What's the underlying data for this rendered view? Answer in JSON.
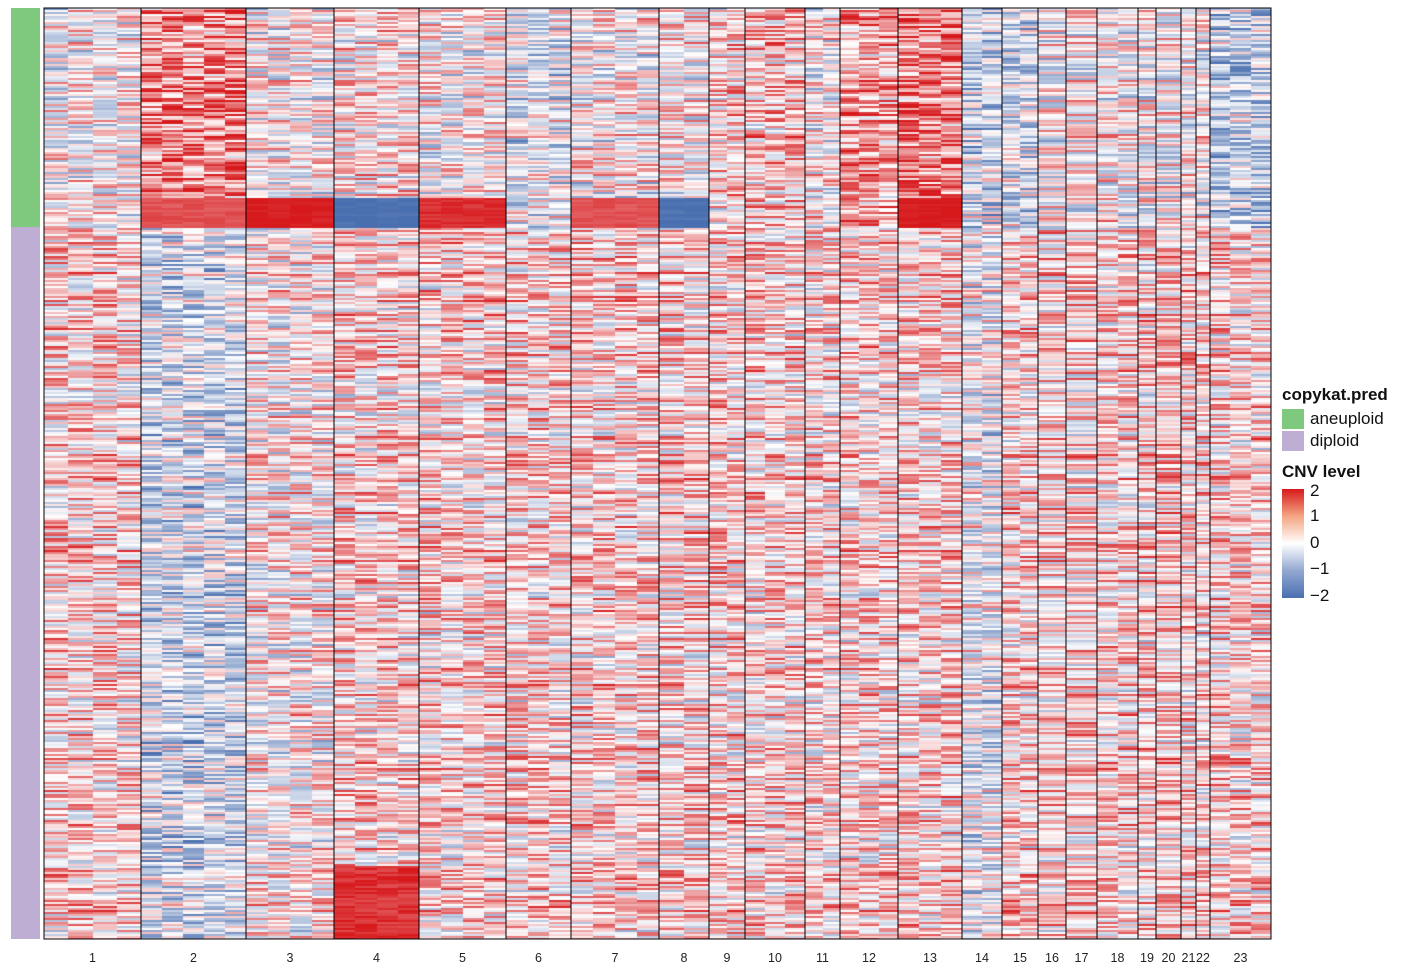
{
  "chart_data": {
    "type": "heatmap",
    "title": "",
    "xlabel": "",
    "ylabel": "",
    "x_categories": [
      "1",
      "2",
      "3",
      "4",
      "5",
      "6",
      "7",
      "8",
      "9",
      "10",
      "11",
      "12",
      "13",
      "14",
      "15",
      "16",
      "17",
      "18",
      "19",
      "20",
      "21",
      "22",
      "23"
    ],
    "row_annotation": {
      "title": "copykat.pred",
      "groups": [
        {
          "name": "aneuploid",
          "color": "#7fc97f",
          "fraction_of_rows": 0.235
        },
        {
          "name": "diploid",
          "color": "#beaed4",
          "fraction_of_rows": 0.765
        }
      ]
    },
    "color_scale": {
      "title": "CNV level",
      "ticks": [
        "2",
        "1",
        "0",
        "−1",
        "−2"
      ],
      "range": [
        -2,
        2
      ],
      "low_color": "#4a6fb0",
      "mid_color": "#ffffff",
      "high_color": "#d7191c"
    },
    "notable_blocks": [
      {
        "chromosome": "3",
        "group": "aneuploid",
        "level": 2
      },
      {
        "chromosome": "4",
        "group": "aneuploid",
        "level": -2
      },
      {
        "chromosome": "5",
        "group": "aneuploid",
        "level": 1.8
      },
      {
        "chromosome": "7",
        "group": "aneuploid",
        "level": 1.5
      },
      {
        "chromosome": "8",
        "group": "aneuploid",
        "level": -2
      },
      {
        "chromosome": "13",
        "group": "aneuploid",
        "level": 2
      },
      {
        "chromosome": "2",
        "group": "aneuploid",
        "level": 1.5
      },
      {
        "chromosome": "4",
        "group": "diploid",
        "level": 1.8
      }
    ]
  },
  "legend": {
    "group_title": "copykat.pred",
    "group_items": [
      "aneuploid",
      "diploid"
    ],
    "scale_title": "CNV level",
    "scale_ticks": [
      "2",
      "1",
      "0",
      "−1",
      "−2"
    ]
  }
}
